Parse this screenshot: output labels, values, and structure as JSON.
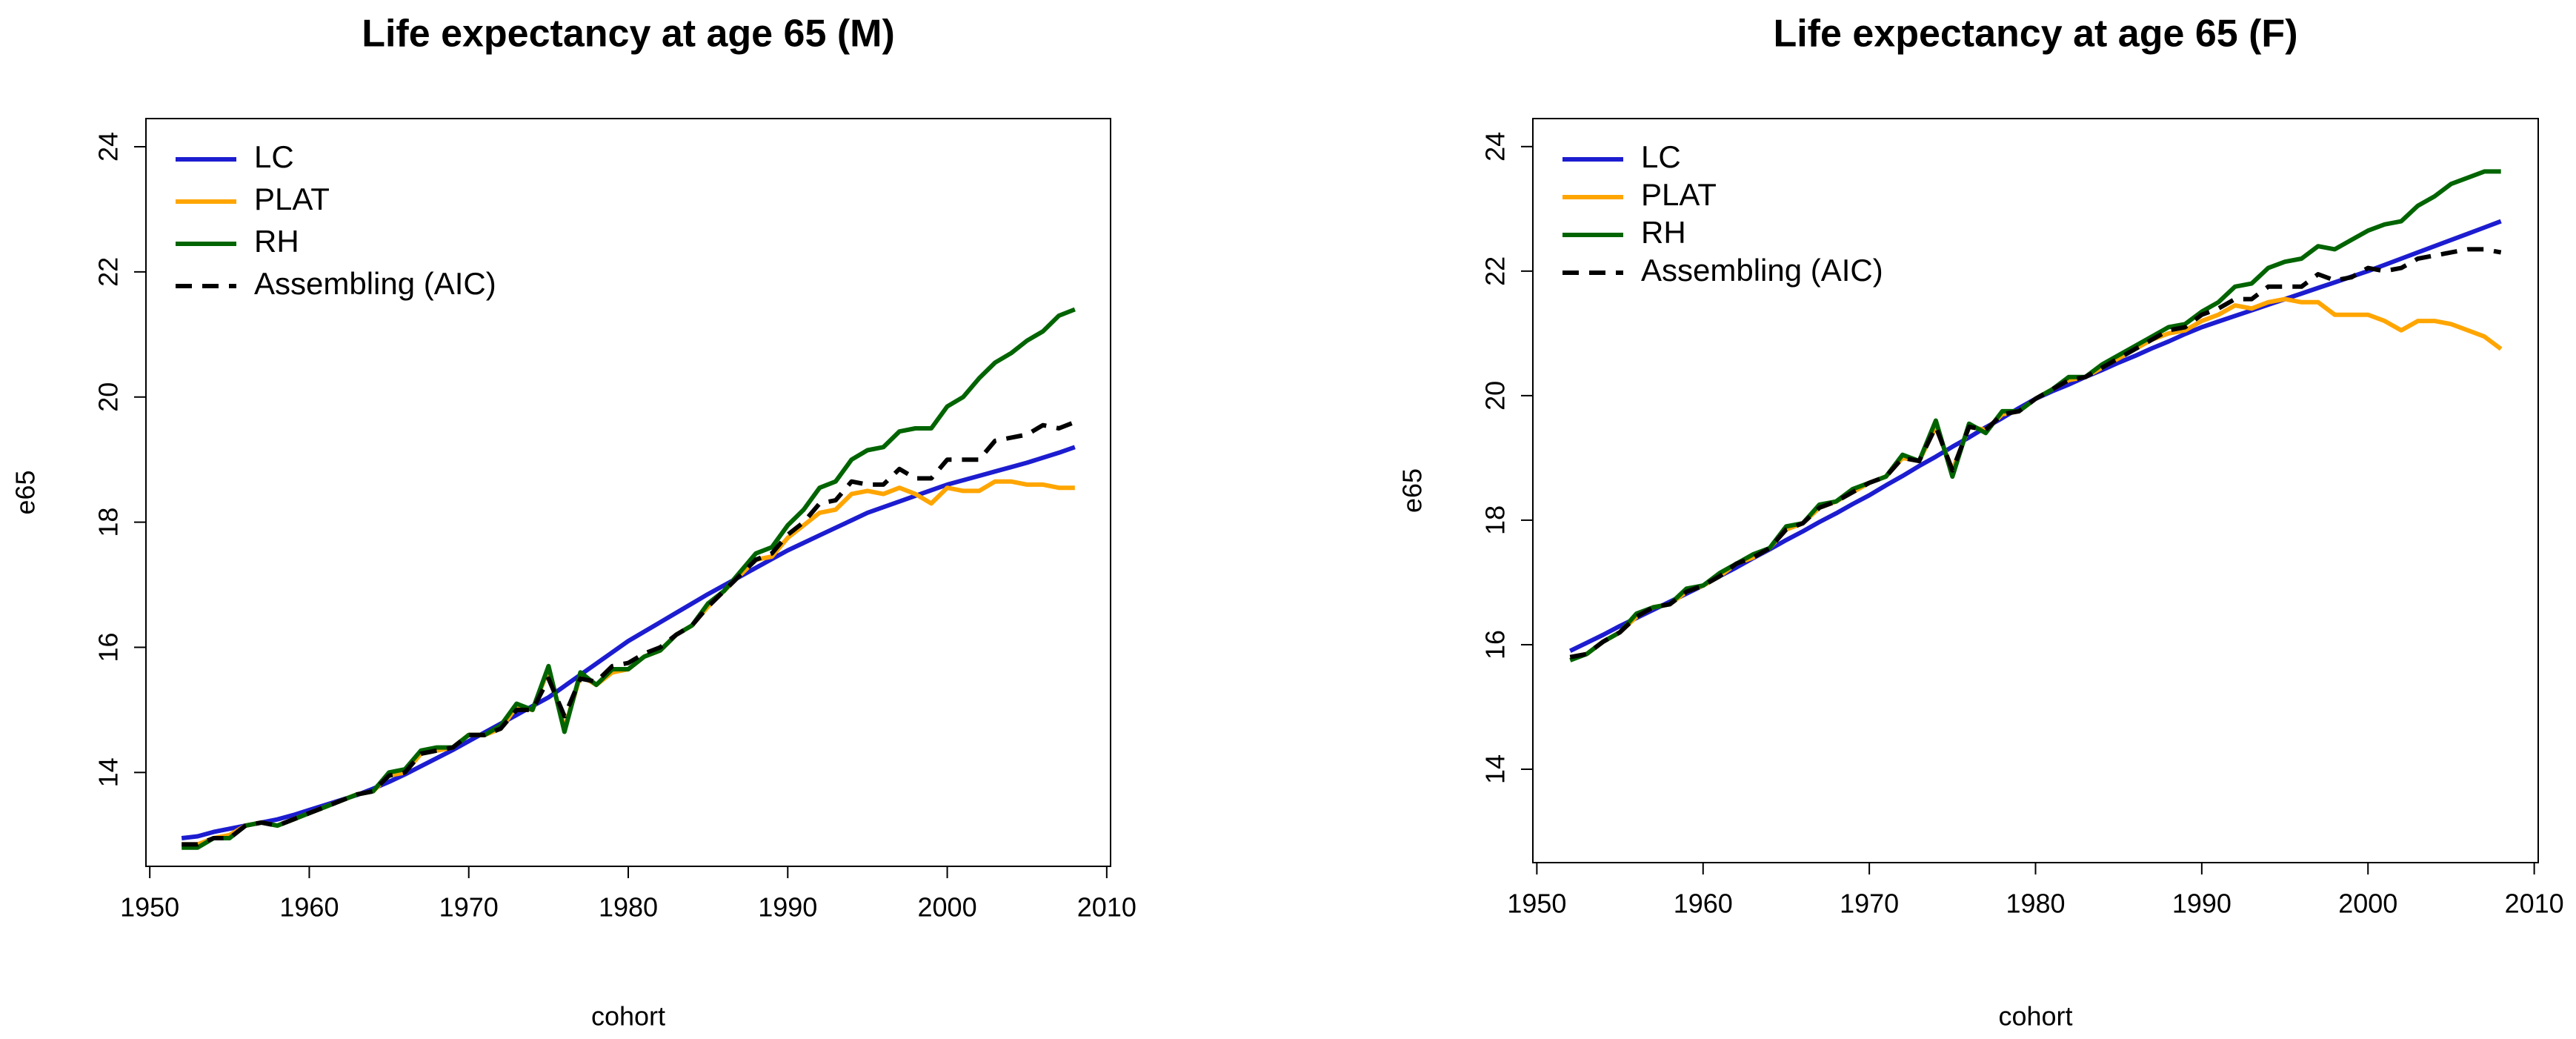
{
  "chart_data": [
    {
      "type": "line",
      "title": "Life expectancy at age 65 (M)",
      "xlabel": "cohort",
      "ylabel": "e65",
      "x": [
        1952,
        1953,
        1954,
        1955,
        1956,
        1957,
        1958,
        1959,
        1960,
        1961,
        1962,
        1963,
        1964,
        1965,
        1966,
        1967,
        1968,
        1969,
        1970,
        1971,
        1972,
        1973,
        1974,
        1975,
        1976,
        1977,
        1978,
        1979,
        1980,
        1981,
        1982,
        1983,
        1984,
        1985,
        1986,
        1987,
        1988,
        1989,
        1990,
        1991,
        1992,
        1993,
        1994,
        1995,
        1996,
        1997,
        1998,
        1999,
        2000,
        2001,
        2002,
        2003,
        2004,
        2005,
        2006,
        2007,
        2008
      ],
      "series": [
        {
          "name": "LC",
          "color": "#1c1cd0",
          "linestyle": "solid",
          "values": [
            12.95,
            12.98,
            13.05,
            13.1,
            13.15,
            13.2,
            13.25,
            13.32,
            13.4,
            13.48,
            13.56,
            13.64,
            13.74,
            13.85,
            13.97,
            14.1,
            14.23,
            14.36,
            14.5,
            14.64,
            14.78,
            14.92,
            15.06,
            15.2,
            15.38,
            15.56,
            15.74,
            15.92,
            16.1,
            16.25,
            16.4,
            16.55,
            16.7,
            16.85,
            16.99,
            17.13,
            17.27,
            17.41,
            17.55,
            17.67,
            17.79,
            17.91,
            18.03,
            18.15,
            18.24,
            18.33,
            18.42,
            18.51,
            18.6,
            18.67,
            18.74,
            18.81,
            18.88,
            18.95,
            19.03,
            19.11,
            19.2
          ]
        },
        {
          "name": "PLAT",
          "color": "#ffa500",
          "linestyle": "solid",
          "values": [
            12.85,
            12.85,
            12.95,
            13.0,
            13.15,
            13.2,
            13.15,
            13.25,
            13.35,
            13.45,
            13.55,
            13.65,
            13.7,
            13.95,
            14.0,
            14.3,
            14.35,
            14.4,
            14.6,
            14.6,
            14.7,
            15.05,
            15.0,
            15.65,
            14.7,
            15.55,
            15.4,
            15.6,
            15.65,
            15.85,
            15.95,
            16.2,
            16.35,
            16.65,
            16.9,
            17.15,
            17.4,
            17.45,
            17.75,
            17.95,
            18.15,
            18.2,
            18.45,
            18.5,
            18.45,
            18.55,
            18.45,
            18.3,
            18.55,
            18.5,
            18.5,
            18.65,
            18.65,
            18.6,
            18.6,
            18.55,
            18.55
          ]
        },
        {
          "name": "RH",
          "color": "#006400",
          "linestyle": "solid",
          "values": [
            12.8,
            12.8,
            12.95,
            12.95,
            13.15,
            13.2,
            13.15,
            13.25,
            13.35,
            13.45,
            13.55,
            13.65,
            13.7,
            14.0,
            14.05,
            14.35,
            14.4,
            14.4,
            14.6,
            14.6,
            14.75,
            15.1,
            15.0,
            15.7,
            14.65,
            15.6,
            15.4,
            15.65,
            15.65,
            15.85,
            15.95,
            16.2,
            16.35,
            16.7,
            16.9,
            17.2,
            17.5,
            17.6,
            17.95,
            18.2,
            18.55,
            18.65,
            19.0,
            19.15,
            19.2,
            19.45,
            19.5,
            19.5,
            19.85,
            20.0,
            20.3,
            20.55,
            20.7,
            20.9,
            21.05,
            21.3,
            21.4
          ]
        },
        {
          "name": "Assembling (AIC)",
          "color": "#000000",
          "linestyle": "dashed",
          "values": [
            12.85,
            12.85,
            12.95,
            12.95,
            13.15,
            13.2,
            13.15,
            13.25,
            13.35,
            13.45,
            13.55,
            13.65,
            13.7,
            13.95,
            14.0,
            14.3,
            14.35,
            14.4,
            14.6,
            14.6,
            14.7,
            15.0,
            15.0,
            15.5,
            14.9,
            15.5,
            15.45,
            15.7,
            15.75,
            15.9,
            16.0,
            16.2,
            16.35,
            16.65,
            16.9,
            17.15,
            17.4,
            17.5,
            17.8,
            18.0,
            18.3,
            18.35,
            18.65,
            18.6,
            18.6,
            18.85,
            18.7,
            18.7,
            19.0,
            19.0,
            19.0,
            19.3,
            19.35,
            19.4,
            19.55,
            19.5,
            19.6
          ]
        }
      ],
      "xlim": [
        1949.76,
        2010.24
      ],
      "ylim": [
        12.5,
        24.45
      ],
      "xticks": [
        1950,
        1960,
        1970,
        1980,
        1990,
        2000,
        2010
      ],
      "yticks": [
        14,
        16,
        18,
        20,
        22,
        24
      ],
      "legend": "top-left"
    },
    {
      "type": "line",
      "title": "Life expectancy at age 65 (F)",
      "xlabel": "cohort",
      "ylabel": "e65",
      "x": [
        1952,
        1953,
        1954,
        1955,
        1956,
        1957,
        1958,
        1959,
        1960,
        1961,
        1962,
        1963,
        1964,
        1965,
        1966,
        1967,
        1968,
        1969,
        1970,
        1971,
        1972,
        1973,
        1974,
        1975,
        1976,
        1977,
        1978,
        1979,
        1980,
        1981,
        1982,
        1983,
        1984,
        1985,
        1986,
        1987,
        1988,
        1989,
        1990,
        1991,
        1992,
        1993,
        1994,
        1995,
        1996,
        1997,
        1998,
        1999,
        2000,
        2001,
        2002,
        2003,
        2004,
        2005,
        2006,
        2007,
        2008
      ],
      "series": [
        {
          "name": "LC",
          "color": "#1c1cd0",
          "linestyle": "solid",
          "values": [
            15.9,
            16.03,
            16.16,
            16.3,
            16.43,
            16.56,
            16.69,
            16.82,
            16.95,
            17.1,
            17.24,
            17.39,
            17.53,
            17.68,
            17.82,
            17.97,
            18.11,
            18.26,
            18.4,
            18.56,
            18.71,
            18.87,
            19.02,
            19.18,
            19.33,
            19.49,
            19.64,
            19.8,
            19.95,
            20.07,
            20.18,
            20.3,
            20.41,
            20.53,
            20.64,
            20.76,
            20.87,
            20.99,
            21.1,
            21.19,
            21.28,
            21.37,
            21.46,
            21.55,
            21.64,
            21.73,
            21.82,
            21.91,
            22.0,
            22.1,
            22.2,
            22.3,
            22.4,
            22.5,
            22.6,
            22.7,
            22.8
          ]
        },
        {
          "name": "PLAT",
          "color": "#ffa500",
          "linestyle": "solid",
          "values": [
            15.8,
            15.85,
            16.05,
            16.2,
            16.45,
            16.6,
            16.65,
            16.85,
            16.95,
            17.1,
            17.3,
            17.4,
            17.55,
            17.85,
            17.95,
            18.2,
            18.3,
            18.45,
            18.6,
            18.7,
            19.0,
            18.95,
            19.5,
            18.8,
            19.5,
            19.45,
            19.7,
            19.75,
            19.95,
            20.1,
            20.25,
            20.3,
            20.45,
            20.6,
            20.75,
            20.9,
            21.0,
            21.05,
            21.2,
            21.3,
            21.45,
            21.4,
            21.5,
            21.55,
            21.5,
            21.5,
            21.3,
            21.3,
            21.3,
            21.2,
            21.05,
            21.2,
            21.2,
            21.15,
            21.05,
            20.95,
            20.75
          ]
        },
        {
          "name": "RH",
          "color": "#006400",
          "linestyle": "solid",
          "values": [
            15.75,
            15.85,
            16.05,
            16.2,
            16.5,
            16.6,
            16.65,
            16.9,
            16.95,
            17.15,
            17.3,
            17.45,
            17.55,
            17.9,
            17.95,
            18.25,
            18.3,
            18.5,
            18.6,
            18.7,
            19.05,
            18.95,
            19.6,
            18.7,
            19.55,
            19.4,
            19.75,
            19.75,
            19.95,
            20.1,
            20.3,
            20.3,
            20.5,
            20.65,
            20.8,
            20.95,
            21.1,
            21.15,
            21.35,
            21.5,
            21.75,
            21.8,
            22.05,
            22.15,
            22.2,
            22.4,
            22.35,
            22.5,
            22.65,
            22.75,
            22.8,
            23.05,
            23.2,
            23.4,
            23.5,
            23.6,
            23.6
          ]
        },
        {
          "name": "Assembling (AIC)",
          "color": "#000000",
          "linestyle": "dashed",
          "values": [
            15.8,
            15.85,
            16.05,
            16.2,
            16.45,
            16.6,
            16.65,
            16.85,
            16.95,
            17.1,
            17.3,
            17.4,
            17.55,
            17.85,
            17.95,
            18.2,
            18.3,
            18.45,
            18.6,
            18.7,
            19.0,
            18.95,
            19.5,
            18.8,
            19.5,
            19.45,
            19.7,
            19.75,
            19.95,
            20.1,
            20.25,
            20.3,
            20.45,
            20.6,
            20.75,
            20.9,
            21.05,
            21.1,
            21.3,
            21.4,
            21.55,
            21.55,
            21.75,
            21.75,
            21.75,
            21.95,
            21.85,
            21.9,
            22.05,
            22.0,
            22.05,
            22.2,
            22.25,
            22.3,
            22.35,
            22.35,
            22.3
          ]
        }
      ],
      "xlim": [
        1949.76,
        2010.24
      ],
      "ylim": [
        12.5,
        24.45
      ],
      "xticks": [
        1950,
        1960,
        1970,
        1980,
        1990,
        2000,
        2010
      ],
      "yticks": [
        14,
        16,
        18,
        20,
        22,
        24
      ],
      "legend": "top-left"
    }
  ]
}
